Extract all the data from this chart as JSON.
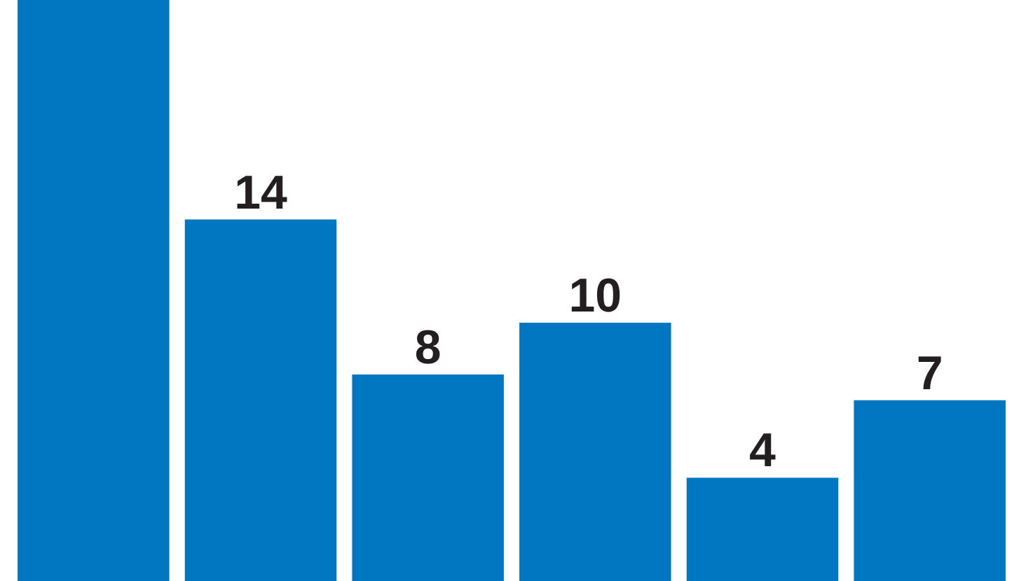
{
  "chart_data": {
    "type": "bar",
    "categories": [
      null,
      null,
      null,
      null,
      null,
      null
    ],
    "values": [
      22.5,
      14,
      8,
      10,
      4,
      7
    ],
    "value_labels": [
      null,
      "14",
      "8",
      "10",
      "4",
      "7"
    ],
    "color": "#0077c0",
    "tick_labels": false
  }
}
